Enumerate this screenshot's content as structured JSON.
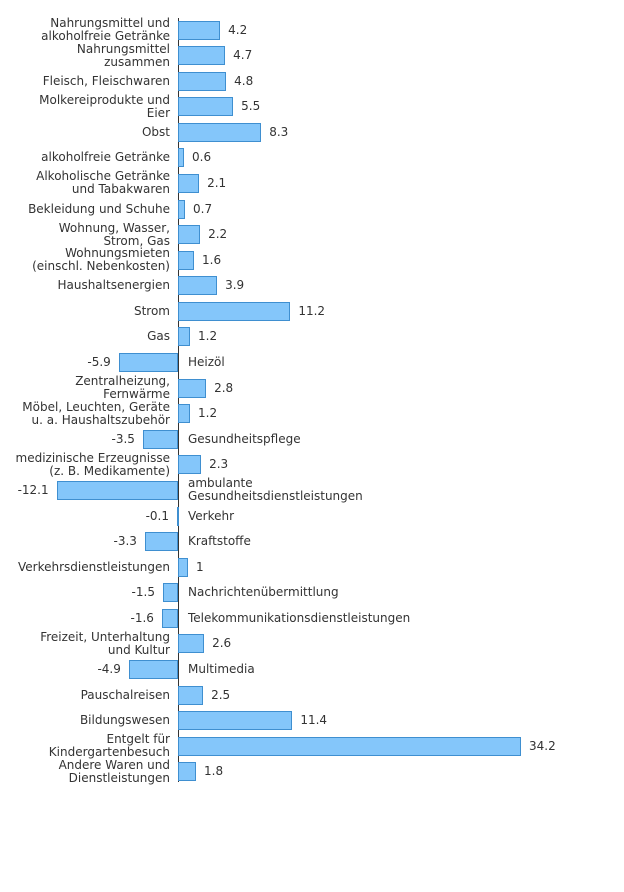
{
  "chart_data": {
    "type": "bar",
    "orientation": "horizontal",
    "color": "#84c6fa",
    "categories": [
      "Nahrungsmittel und\nalkoholfreie Getränke",
      "Nahrungsmittel\nzusammen",
      "Fleisch, Fleischwaren",
      "Molkereiprodukte und\nEier",
      "Obst",
      "alkoholfreie Getränke",
      "Alkoholische Getränke\nund Tabakwaren",
      "Bekleidung und Schuhe",
      "Wohnung, Wasser,\nStrom, Gas",
      "Wohnungsmieten\n(einschl. Nebenkosten)",
      "Haushaltsenergien",
      "Strom",
      "Gas",
      "Heizöl",
      "Zentralheizung,\nFernwärme",
      "Möbel, Leuchten, Geräte\nu. a. Haushaltszubehör",
      "Gesundheitspflege",
      "medizinische Erzeugnisse\n(z. B. Medikamente)",
      "ambulante\nGesundheitsdienstleistungen",
      "Verkehr",
      "Kraftstoffe",
      "Verkehrsdienstleistungen",
      "Nachrichtenübermittlung",
      "Telekommunikationsdienstleistungen",
      "Freizeit, Unterhaltung\nund Kultur",
      "Multimedia",
      "Pauschalreisen",
      "Bildungswesen",
      "Entgelt für\nKindergartenbesuch",
      "Andere Waren und\nDienstleistungen"
    ],
    "values": [
      4.2,
      4.7,
      4.8,
      5.5,
      8.3,
      0.6,
      2.1,
      0.7,
      2.2,
      1.6,
      3.9,
      11.2,
      1.2,
      -5.9,
      2.8,
      1.2,
      -3.5,
      2.3,
      -12.1,
      -0.1,
      -3.3,
      1,
      -1.5,
      -1.6,
      2.6,
      -4.9,
      2.5,
      11.4,
      34.2,
      1.8
    ]
  }
}
